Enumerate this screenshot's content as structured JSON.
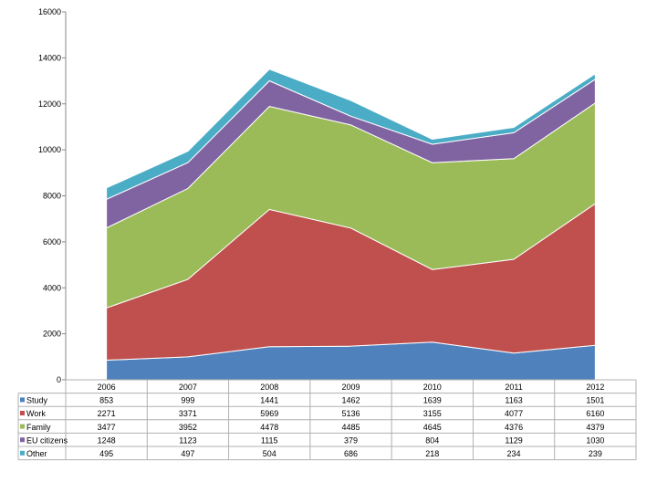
{
  "chart_data": {
    "type": "area",
    "stacked": true,
    "categories": [
      "2006",
      "2007",
      "2008",
      "2009",
      "2010",
      "2011",
      "2012"
    ],
    "series": [
      {
        "name": "Study",
        "color": "#4F81BD",
        "values": [
          853,
          999,
          1441,
          1462,
          1639,
          1163,
          1501
        ]
      },
      {
        "name": "Work",
        "color": "#C0504D",
        "values": [
          2271,
          3371,
          5969,
          5136,
          3155,
          4077,
          6160
        ]
      },
      {
        "name": "Family",
        "color": "#9BBB59",
        "values": [
          3477,
          3952,
          4478,
          4485,
          4645,
          4376,
          4379
        ]
      },
      {
        "name": "EU citizens",
        "color": "#8064A2",
        "values": [
          1248,
          1123,
          1115,
          379,
          804,
          1129,
          1030
        ]
      },
      {
        "name": "Other",
        "color": "#4BACC6",
        "values": [
          495,
          497,
          504,
          686,
          218,
          234,
          239
        ]
      }
    ],
    "y_ticks": [
      "0",
      "2000",
      "4000",
      "6000",
      "8000",
      "10000",
      "12000",
      "14000",
      "16000"
    ],
    "ylim": [
      0,
      16000
    ],
    "grid": false,
    "legend": "data-table below chart"
  }
}
